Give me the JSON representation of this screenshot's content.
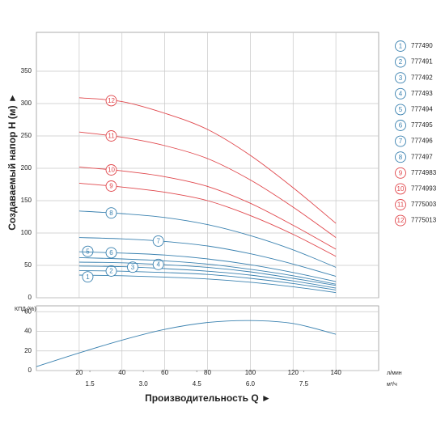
{
  "chart_data": [
    {
      "type": "line",
      "y_label": "Создаваемый напор H (м) ►",
      "x": [
        20,
        40,
        60,
        80,
        100,
        120,
        140
      ],
      "xlim": [
        0,
        160
      ],
      "xticks": [
        20,
        40,
        60,
        80,
        100,
        120,
        140
      ],
      "ylim": [
        0,
        410
      ],
      "yticks": [
        0,
        50,
        100,
        150,
        200,
        250,
        300,
        350
      ],
      "grid": true,
      "series": [
        {
          "name": "777490",
          "marker": "1",
          "color": "#3b82b0",
          "values": [
            35,
            34,
            32,
            29,
            24,
            17,
            8
          ]
        },
        {
          "name": "777491",
          "marker": "2",
          "color": "#3b82b0",
          "values": [
            42,
            41,
            39,
            36,
            30,
            22,
            12
          ]
        },
        {
          "name": "777492",
          "marker": "3",
          "color": "#3b82b0",
          "values": [
            49,
            48,
            45,
            41,
            35,
            26,
            15
          ]
        },
        {
          "name": "777493",
          "marker": "4",
          "color": "#3b82b0",
          "values": [
            55,
            54,
            51,
            47,
            40,
            30,
            19
          ]
        },
        {
          "name": "777494",
          "marker": "5",
          "color": "#3b82b0",
          "values": [
            62,
            60,
            57,
            52,
            44,
            34,
            21
          ]
        },
        {
          "name": "777495",
          "marker": "6",
          "color": "#3b82b0",
          "values": [
            71,
            69,
            66,
            60,
            51,
            39,
            25
          ]
        },
        {
          "name": "777496",
          "marker": "7",
          "color": "#3b82b0",
          "values": [
            93,
            91,
            87,
            80,
            68,
            52,
            33
          ]
        },
        {
          "name": "777497",
          "marker": "8",
          "color": "#3b82b0",
          "values": [
            134,
            130,
            124,
            113,
            96,
            74,
            47
          ]
        },
        {
          "name": "7774983",
          "marker": "9",
          "color": "#e0474c",
          "values": [
            177,
            171,
            163,
            150,
            127,
            98,
            64
          ]
        },
        {
          "name": "7774993",
          "marker": "10",
          "color": "#e0474c",
          "values": [
            202,
            196,
            187,
            172,
            146,
            112,
            75
          ]
        },
        {
          "name": "7775003",
          "marker": "11",
          "color": "#e0474c",
          "values": [
            256,
            248,
            235,
            215,
            182,
            140,
            93
          ]
        },
        {
          "name": "7775013",
          "marker": "12",
          "color": "#e0474c",
          "values": [
            309,
            303,
            285,
            260,
            220,
            170,
            115
          ]
        }
      ]
    },
    {
      "type": "line",
      "y_label": "КПД (%)",
      "x_label": "Производительность Q ►",
      "x_unit": "л/мин",
      "x2_unit": "м³/ч",
      "x": [
        0,
        20,
        40,
        60,
        80,
        100,
        120,
        140
      ],
      "xlim": [
        0,
        160
      ],
      "xticks": [
        20,
        40,
        60,
        80,
        100,
        120,
        140
      ],
      "x2ticks": [
        {
          "value": 25,
          "label": "1.5"
        },
        {
          "value": 50,
          "label": "3.0"
        },
        {
          "value": 75,
          "label": "4.5"
        },
        {
          "value": 100,
          "label": "6.0"
        },
        {
          "value": 125,
          "label": "7.5"
        }
      ],
      "ylim": [
        0,
        66
      ],
      "yticks": [
        0,
        20,
        40,
        60
      ],
      "grid": true,
      "color": "#3b82b0",
      "values": [
        4,
        18,
        31,
        42,
        49,
        51,
        48,
        37
      ]
    }
  ]
}
